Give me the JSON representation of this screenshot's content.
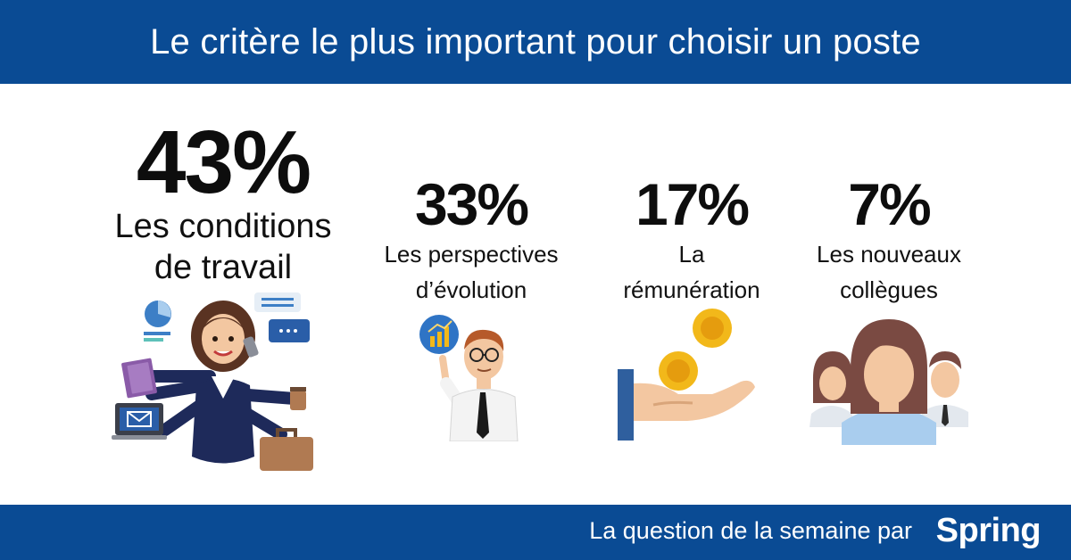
{
  "header": {
    "title": "Le critère le plus important pour choisir un poste"
  },
  "stats": [
    {
      "percent": "43%",
      "label_line1": "Les conditions",
      "label_line2": "de travail",
      "value": 43
    },
    {
      "percent": "33%",
      "label_line1": "Les perspectives",
      "label_line2": "d’évolution",
      "value": 33
    },
    {
      "percent": "17%",
      "label_line1": "La",
      "label_line2": "rémunération",
      "value": 17
    },
    {
      "percent": "7%",
      "label_line1": "Les nouveaux",
      "label_line2": "collègues",
      "value": 7
    }
  ],
  "footer": {
    "text": "La question de la semaine par",
    "brand": "Spring"
  },
  "colors": {
    "brand_blue": "#0a4b94",
    "text": "#0d0d0d",
    "coin": "#f2b81a"
  },
  "icons": [
    "multitasking-woman-icon",
    "growth-businessman-icon",
    "hand-coins-icon",
    "team-people-icon"
  ]
}
